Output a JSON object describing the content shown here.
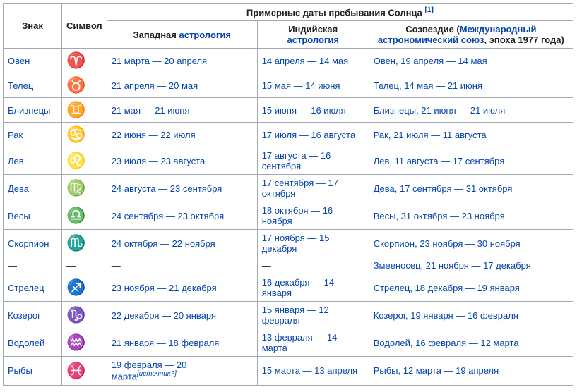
{
  "headers": {
    "sign": "Знак",
    "symbol": "Символ",
    "sun_group": "Примерные даты пребывания Солнца",
    "sun_ref": "[1]",
    "western_prefix": "Западная ",
    "western_link": "астрология",
    "indian_prefix": "Индийская ",
    "indian_link": "астрология",
    "constellation_prefix": "Созвездие (",
    "constellation_link": "Международный астрономический союз",
    "constellation_suffix": ", эпоха 1977 года)"
  },
  "source_note": "[источник?]",
  "rows": [
    {
      "sign": "Овен",
      "symbol": "♈",
      "western": "21 марта — 20 апреля",
      "indian": "14 апреля — 14 мая",
      "constellation": "Овен, 19 апреля — 14 мая"
    },
    {
      "sign": "Телец",
      "symbol": "♉",
      "western": "21 апреля — 20 мая",
      "indian": "15 мая — 14 июня",
      "constellation": "Телец, 14 мая — 21 июня"
    },
    {
      "sign": "Близнецы",
      "symbol": "♊",
      "western": "21 мая — 21 июня",
      "indian": "15 июня — 16 июля",
      "constellation": "Близнецы, 21 июня — 21 июля"
    },
    {
      "sign": "Рак",
      "symbol": "♋",
      "western": "22 июня — 22 июля",
      "indian": "17 июля — 16 августа",
      "constellation": "Рак, 21 июля — 11 августа"
    },
    {
      "sign": "Лев",
      "symbol": "♌",
      "western": "23 июля — 23 августа",
      "indian": "17 августа — 16 сентября",
      "constellation": "Лев, 11 августа — 17 сентября"
    },
    {
      "sign": "Дева",
      "symbol": "♍",
      "western": "24 августа — 23 сентября",
      "indian": "17 сентября — 17 октября",
      "constellation": "Дева, 17 сентября — 31 октября"
    },
    {
      "sign": "Весы",
      "symbol": "♎",
      "western": "24 сентября — 23 октября",
      "indian": "18 октября — 16 ноября",
      "constellation": "Весы, 31 октября — 23 ноября"
    },
    {
      "sign": "Скорпион",
      "symbol": "♏",
      "western": "24 октября — 22 ноября",
      "indian": "17 ноября — 15 декабря",
      "constellation": "Скорпион, 23 ноября — 30 ноября"
    },
    {
      "sign": "—",
      "symbol": "—",
      "western": "—",
      "indian": "—",
      "constellation": "Змееносец, 21 ноября — 17 декабря",
      "blank": true
    },
    {
      "sign": "Стрелец",
      "symbol": "♐",
      "western": "23 ноября — 21 декабря",
      "indian": "16 декабря — 14 января",
      "constellation": "Стрелец, 18 декабря — 19 января"
    },
    {
      "sign": "Козерог",
      "symbol": "♑",
      "western": "22 декабря — 20 января",
      "indian": "15 января — 12 февраля",
      "constellation": "Козерог, 19 января — 16 февраля"
    },
    {
      "sign": "Водолей",
      "symbol": "♒",
      "western": "21 января — 18 февраля",
      "indian": "13 февраля — 14 марта",
      "constellation": "Водолей, 16 февраля — 12 марта"
    },
    {
      "sign": "Рыбы",
      "symbol": "♓",
      "western": "19 февраля — 20 марта",
      "indian": "15 марта — 13 апреля",
      "constellation": "Рыбы, 12 марта — 19 апреля",
      "has_source_note": true
    }
  ]
}
